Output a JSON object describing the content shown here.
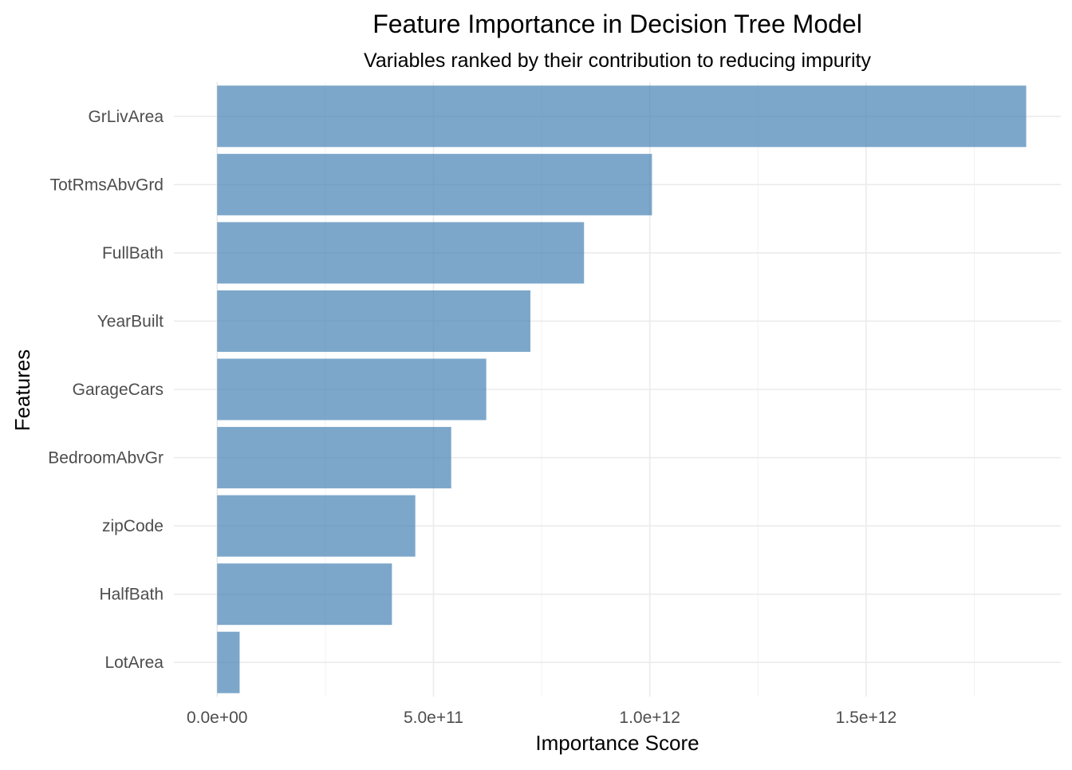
{
  "chart_data": {
    "type": "bar",
    "orientation": "horizontal",
    "title": "Feature Importance in Decision Tree Model",
    "subtitle": "Variables ranked by their contribution to reducing impurity",
    "xlabel": "Importance Score",
    "ylabel": "Features",
    "categories": [
      "GrLivArea",
      "TotRmsAbvGrd",
      "FullBath",
      "YearBuilt",
      "GarageCars",
      "BedroomAbvGr",
      "zipCode",
      "HalfBath",
      "LotArea"
    ],
    "values": [
      1870000000000,
      1005000000000,
      848000000000,
      724000000000,
      622000000000,
      541000000000,
      458000000000,
      404000000000,
      52000000000
    ],
    "xlim": [
      -100000000000,
      1950000000000
    ],
    "xticks": [
      0,
      500000000000,
      1000000000000,
      1500000000000
    ],
    "xtick_labels": [
      "0.0e+00",
      "5.0e+11",
      "1.0e+12",
      "1.5e+12"
    ],
    "bar_color": "#4682B4",
    "bar_opacity": 0.7,
    "grid": true,
    "legend": "none"
  }
}
